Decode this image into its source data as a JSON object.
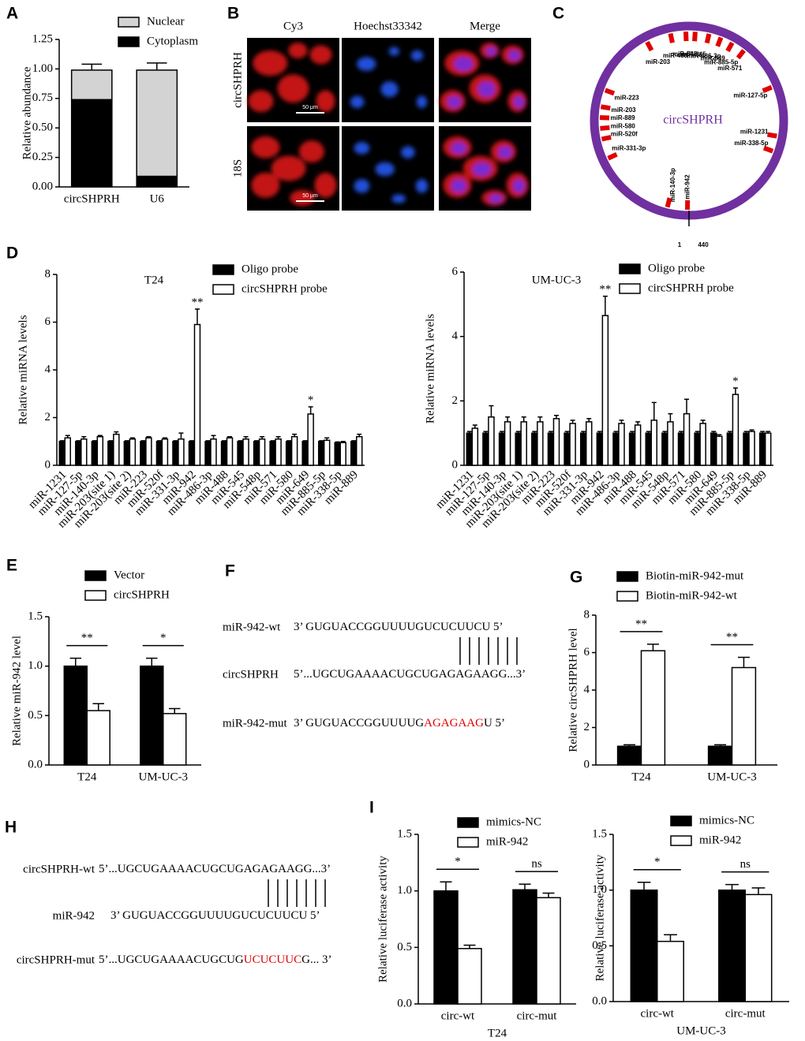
{
  "chart_data": [
    {
      "type": "bar",
      "panel": "A",
      "stacked": true,
      "ylabel": "Relative abundance",
      "categories": [
        "circSHPRH",
        "U6"
      ],
      "series": [
        {
          "name": "Nuclear",
          "color": "#d3d3d3",
          "values": [
            0.25,
            0.9
          ],
          "errors": [
            0.05,
            0.06
          ]
        },
        {
          "name": "Cytoplasm",
          "color": "#000000",
          "values": [
            0.74,
            0.09
          ],
          "errors": [
            0.05,
            0.06
          ]
        }
      ],
      "ylim": [
        0,
        1.25
      ],
      "yticks": [
        {
          "value": 0,
          "label": "0.00"
        },
        {
          "value": 0.25,
          "label": "0.25"
        },
        {
          "value": 0.5,
          "label": "0.50"
        },
        {
          "value": 0.75,
          "label": "0.75"
        },
        {
          "value": 1,
          "label": "1.00"
        },
        {
          "value": 1.25,
          "label": "1.25"
        }
      ]
    },
    {
      "type": "bar",
      "panel": "D",
      "title": "T24",
      "ylabel": "Relative miRNA levels",
      "categories": [
        "miR-1231",
        "miR-127-5p",
        "miR-140-3p",
        "miR-203(site 1)",
        "miR-203(site 2)",
        "miR-223",
        "miR-520f",
        "miR-331-3p",
        "miR-942",
        "miR-486-3p",
        "miR-488",
        "miR-545",
        "miR-548p",
        "miR-571",
        "miR-580",
        "miR-649",
        "miR-885-5p",
        "miR-338-5p",
        "miR-889"
      ],
      "series": [
        {
          "name": "Oligo probe",
          "color": "#000000",
          "values": [
            1,
            1,
            1,
            1,
            1,
            1,
            1,
            1,
            1,
            1,
            1,
            1,
            1,
            1,
            1,
            1,
            1,
            0.95,
            1
          ],
          "errors": [
            0.03,
            0.03,
            0.03,
            0.03,
            0.03,
            0.03,
            0.03,
            0.03,
            0.03,
            0.03,
            0.03,
            0.03,
            0.03,
            0.03,
            0.03,
            0.03,
            0.03,
            0.03,
            0.03
          ]
        },
        {
          "name": "circSHPRH probe",
          "color": "#ffffff",
          "values": [
            1.15,
            1.1,
            1.2,
            1.3,
            1.1,
            1.15,
            1.1,
            1.1,
            5.9,
            1.1,
            1.15,
            1.1,
            1.1,
            1.1,
            1.2,
            2.15,
            1.05,
            0.95,
            1.2
          ],
          "errors": [
            0.1,
            0.1,
            0.05,
            0.1,
            0.05,
            0.05,
            0.05,
            0.25,
            0.65,
            0.15,
            0.05,
            0.1,
            0.1,
            0.1,
            0.1,
            0.3,
            0.1,
            0.05,
            0.1
          ]
        }
      ],
      "annotations": [
        null,
        null,
        null,
        null,
        null,
        null,
        null,
        null,
        "**",
        null,
        null,
        null,
        null,
        null,
        null,
        "*",
        null,
        null,
        null
      ],
      "ylim": [
        0,
        8
      ],
      "yticks": [
        0,
        2,
        4,
        6,
        8
      ]
    },
    {
      "type": "bar",
      "title": "UM-UC-3",
      "ylabel": "Relative miRNA levels",
      "categories": [
        "miR-1231",
        "miR-127-5p",
        "miR-140-3p",
        "miR-203(site 1)",
        "miR-203(site 2)",
        "miR-223",
        "miR-520f",
        "miR-331-3p",
        "miR-942",
        "miR-486-3p",
        "miR-488",
        "miR-545",
        "miR-548p",
        "miR-571",
        "miR-580",
        "miR-649",
        "miR-885-5p",
        "miR-338-5p",
        "miR-889"
      ],
      "series": [
        {
          "name": "Oligo probe",
          "color": "#000000",
          "values": [
            1,
            1,
            1,
            1,
            1,
            1,
            1,
            1,
            1,
            1,
            1,
            1,
            1,
            1,
            1,
            1,
            1,
            1,
            1
          ],
          "errors": [
            0.05,
            0.05,
            0.05,
            0.05,
            0.05,
            0.05,
            0.05,
            0.05,
            0.05,
            0.05,
            0.05,
            0.05,
            0.05,
            0.05,
            0.05,
            0.05,
            0.05,
            0.05,
            0.05
          ]
        },
        {
          "name": "circSHPRH probe",
          "color": "#ffffff",
          "values": [
            1.15,
            1.5,
            1.35,
            1.35,
            1.35,
            1.45,
            1.3,
            1.35,
            4.65,
            1.3,
            1.25,
            1.4,
            1.35,
            1.6,
            1.3,
            0.9,
            2.2,
            1.05,
            1.0
          ],
          "errors": [
            0.1,
            0.35,
            0.15,
            0.15,
            0.15,
            0.1,
            0.1,
            0.1,
            0.6,
            0.1,
            0.1,
            0.55,
            0.25,
            0.45,
            0.1,
            0.05,
            0.2,
            0.05,
            0.05
          ]
        }
      ],
      "annotations": [
        null,
        null,
        null,
        null,
        null,
        null,
        null,
        null,
        "**",
        null,
        null,
        null,
        null,
        null,
        null,
        null,
        "*",
        null,
        null
      ],
      "ylim": [
        0,
        6
      ],
      "yticks": [
        0,
        2,
        4,
        6
      ]
    },
    {
      "type": "bar",
      "panel": "E",
      "ylabel": "Relative miR-942 level",
      "categories": [
        "T24",
        "UM-UC-3"
      ],
      "series": [
        {
          "name": "Vector",
          "color": "#000000",
          "values": [
            1.0,
            1.0
          ],
          "errors": [
            0.08,
            0.08
          ]
        },
        {
          "name": "circSHPRH",
          "color": "#ffffff",
          "values": [
            0.55,
            0.52
          ],
          "errors": [
            0.07,
            0.05
          ]
        }
      ],
      "annotations": [
        "**",
        "*"
      ],
      "ylim": [
        0,
        1.5
      ],
      "yticks": [
        {
          "value": 0,
          "label": "0.0"
        },
        {
          "value": 0.5,
          "label": "0.5"
        },
        {
          "value": 1,
          "label": "1.0"
        },
        {
          "value": 1.5,
          "label": "1.5"
        }
      ]
    },
    {
      "type": "bar",
      "panel": "G",
      "ylabel": "Relative circSHPRH level",
      "categories": [
        "T24",
        "UM-UC-3"
      ],
      "series": [
        {
          "name": "Biotin-miR-942-mut",
          "color": "#000000",
          "values": [
            1.0,
            1.0
          ],
          "errors": [
            0.08,
            0.08
          ]
        },
        {
          "name": "Biotin-miR-942-wt",
          "color": "#ffffff",
          "values": [
            6.1,
            5.2
          ],
          "errors": [
            0.35,
            0.55
          ]
        }
      ],
      "annotations": [
        "**",
        "**"
      ],
      "ylim": [
        0,
        8
      ],
      "yticks": [
        0,
        2,
        4,
        6,
        8
      ]
    },
    {
      "type": "bar",
      "panel": "I",
      "ylabel": "Relative luciferase activity",
      "xlabel": "T24",
      "categories": [
        "circ-wt",
        "circ-mut"
      ],
      "series": [
        {
          "name": "mimics-NC",
          "color": "#000000",
          "values": [
            1.0,
            1.01
          ],
          "errors": [
            0.08,
            0.05
          ]
        },
        {
          "name": "miR-942",
          "color": "#ffffff",
          "values": [
            0.49,
            0.94
          ],
          "errors": [
            0.03,
            0.04
          ]
        }
      ],
      "annotations": [
        "*",
        "ns"
      ],
      "ylim": [
        0,
        1.5
      ],
      "yticks": [
        {
          "value": 0,
          "label": "0.0"
        },
        {
          "value": 0.5,
          "label": "0.5"
        },
        {
          "value": 1,
          "label": "1.0"
        },
        {
          "value": 1.5,
          "label": "1.5"
        }
      ]
    },
    {
      "type": "bar",
      "ylabel": "Relative luciferase activity",
      "xlabel": "UM-UC-3",
      "categories": [
        "circ-wt",
        "circ-mut"
      ],
      "series": [
        {
          "name": "mimics-NC",
          "color": "#000000",
          "values": [
            1.0,
            1.0
          ],
          "errors": [
            0.07,
            0.05
          ]
        },
        {
          "name": "miR-942",
          "color": "#ffffff",
          "values": [
            0.54,
            0.96
          ],
          "errors": [
            0.06,
            0.06
          ]
        }
      ],
      "annotations": [
        "*",
        "ns"
      ],
      "ylim": [
        0,
        1.5
      ],
      "yticks": [
        {
          "value": 0,
          "label": "0.0"
        },
        {
          "value": 0.5,
          "label": "0.5"
        },
        {
          "value": 1,
          "label": "1.0"
        },
        {
          "value": 1.5,
          "label": "1.5"
        }
      ]
    }
  ],
  "microscopy": {
    "panel": "B",
    "columns": [
      "Cy3",
      "Hoechst33342",
      "Merge"
    ],
    "rows": [
      "circSHPRH",
      "18S"
    ],
    "scale_bar": "50 μm"
  },
  "circle_map": {
    "panel": "C",
    "center_label": "circSHPRH",
    "color": "#7030a0",
    "site_color": "#e00000",
    "sites": [
      "miR-203",
      "miR-488",
      "miR-548p",
      "miR-545",
      "miR-486-3p",
      "miR-649",
      "miR-885-5p",
      "miR-571",
      "miR-127-5p",
      "miR-1231",
      "miR-338-5p",
      "miR-942",
      "miR-140-3p",
      "miR-331-3p",
      "miR-520f",
      "miR-580",
      "miR-889",
      "miR-203",
      "miR-223"
    ],
    "start": "1",
    "end": "440"
  },
  "highlight_color": "#e00000",
  "sequences_f": {
    "panel": "F",
    "rows": [
      {
        "label": "miR-942-wt",
        "segments": [
          "3’ GUGUACCGGUUUUGUCUCUUCU 5’"
        ]
      },
      {
        "label": "circSHPRH",
        "segments": [
          "5’...UGCUGAAAACUGCUGAGAGAAGG...3’"
        ]
      },
      {
        "label": "miR-942-mut",
        "segments": [
          "3’ GUGUACCGGUUUUG",
          "AGAGAAG",
          "U 5’"
        ]
      }
    ]
  },
  "sequences_h": {
    "panel": "H",
    "rows": [
      {
        "label": "circSHPRH-wt",
        "segments": [
          "5’...UGCUGAAAACUGCUGAGAGAAGG...3’"
        ]
      },
      {
        "label": "miR-942",
        "segments": [
          "3’ GUGUACCGGUUUUGUCUCUUCU 5’"
        ]
      },
      {
        "label": "circSHPRH-mut",
        "segments": [
          "5’...UGCUGAAAACUGCUG",
          "UCUCUUC",
          "G... 3’"
        ]
      }
    ]
  }
}
